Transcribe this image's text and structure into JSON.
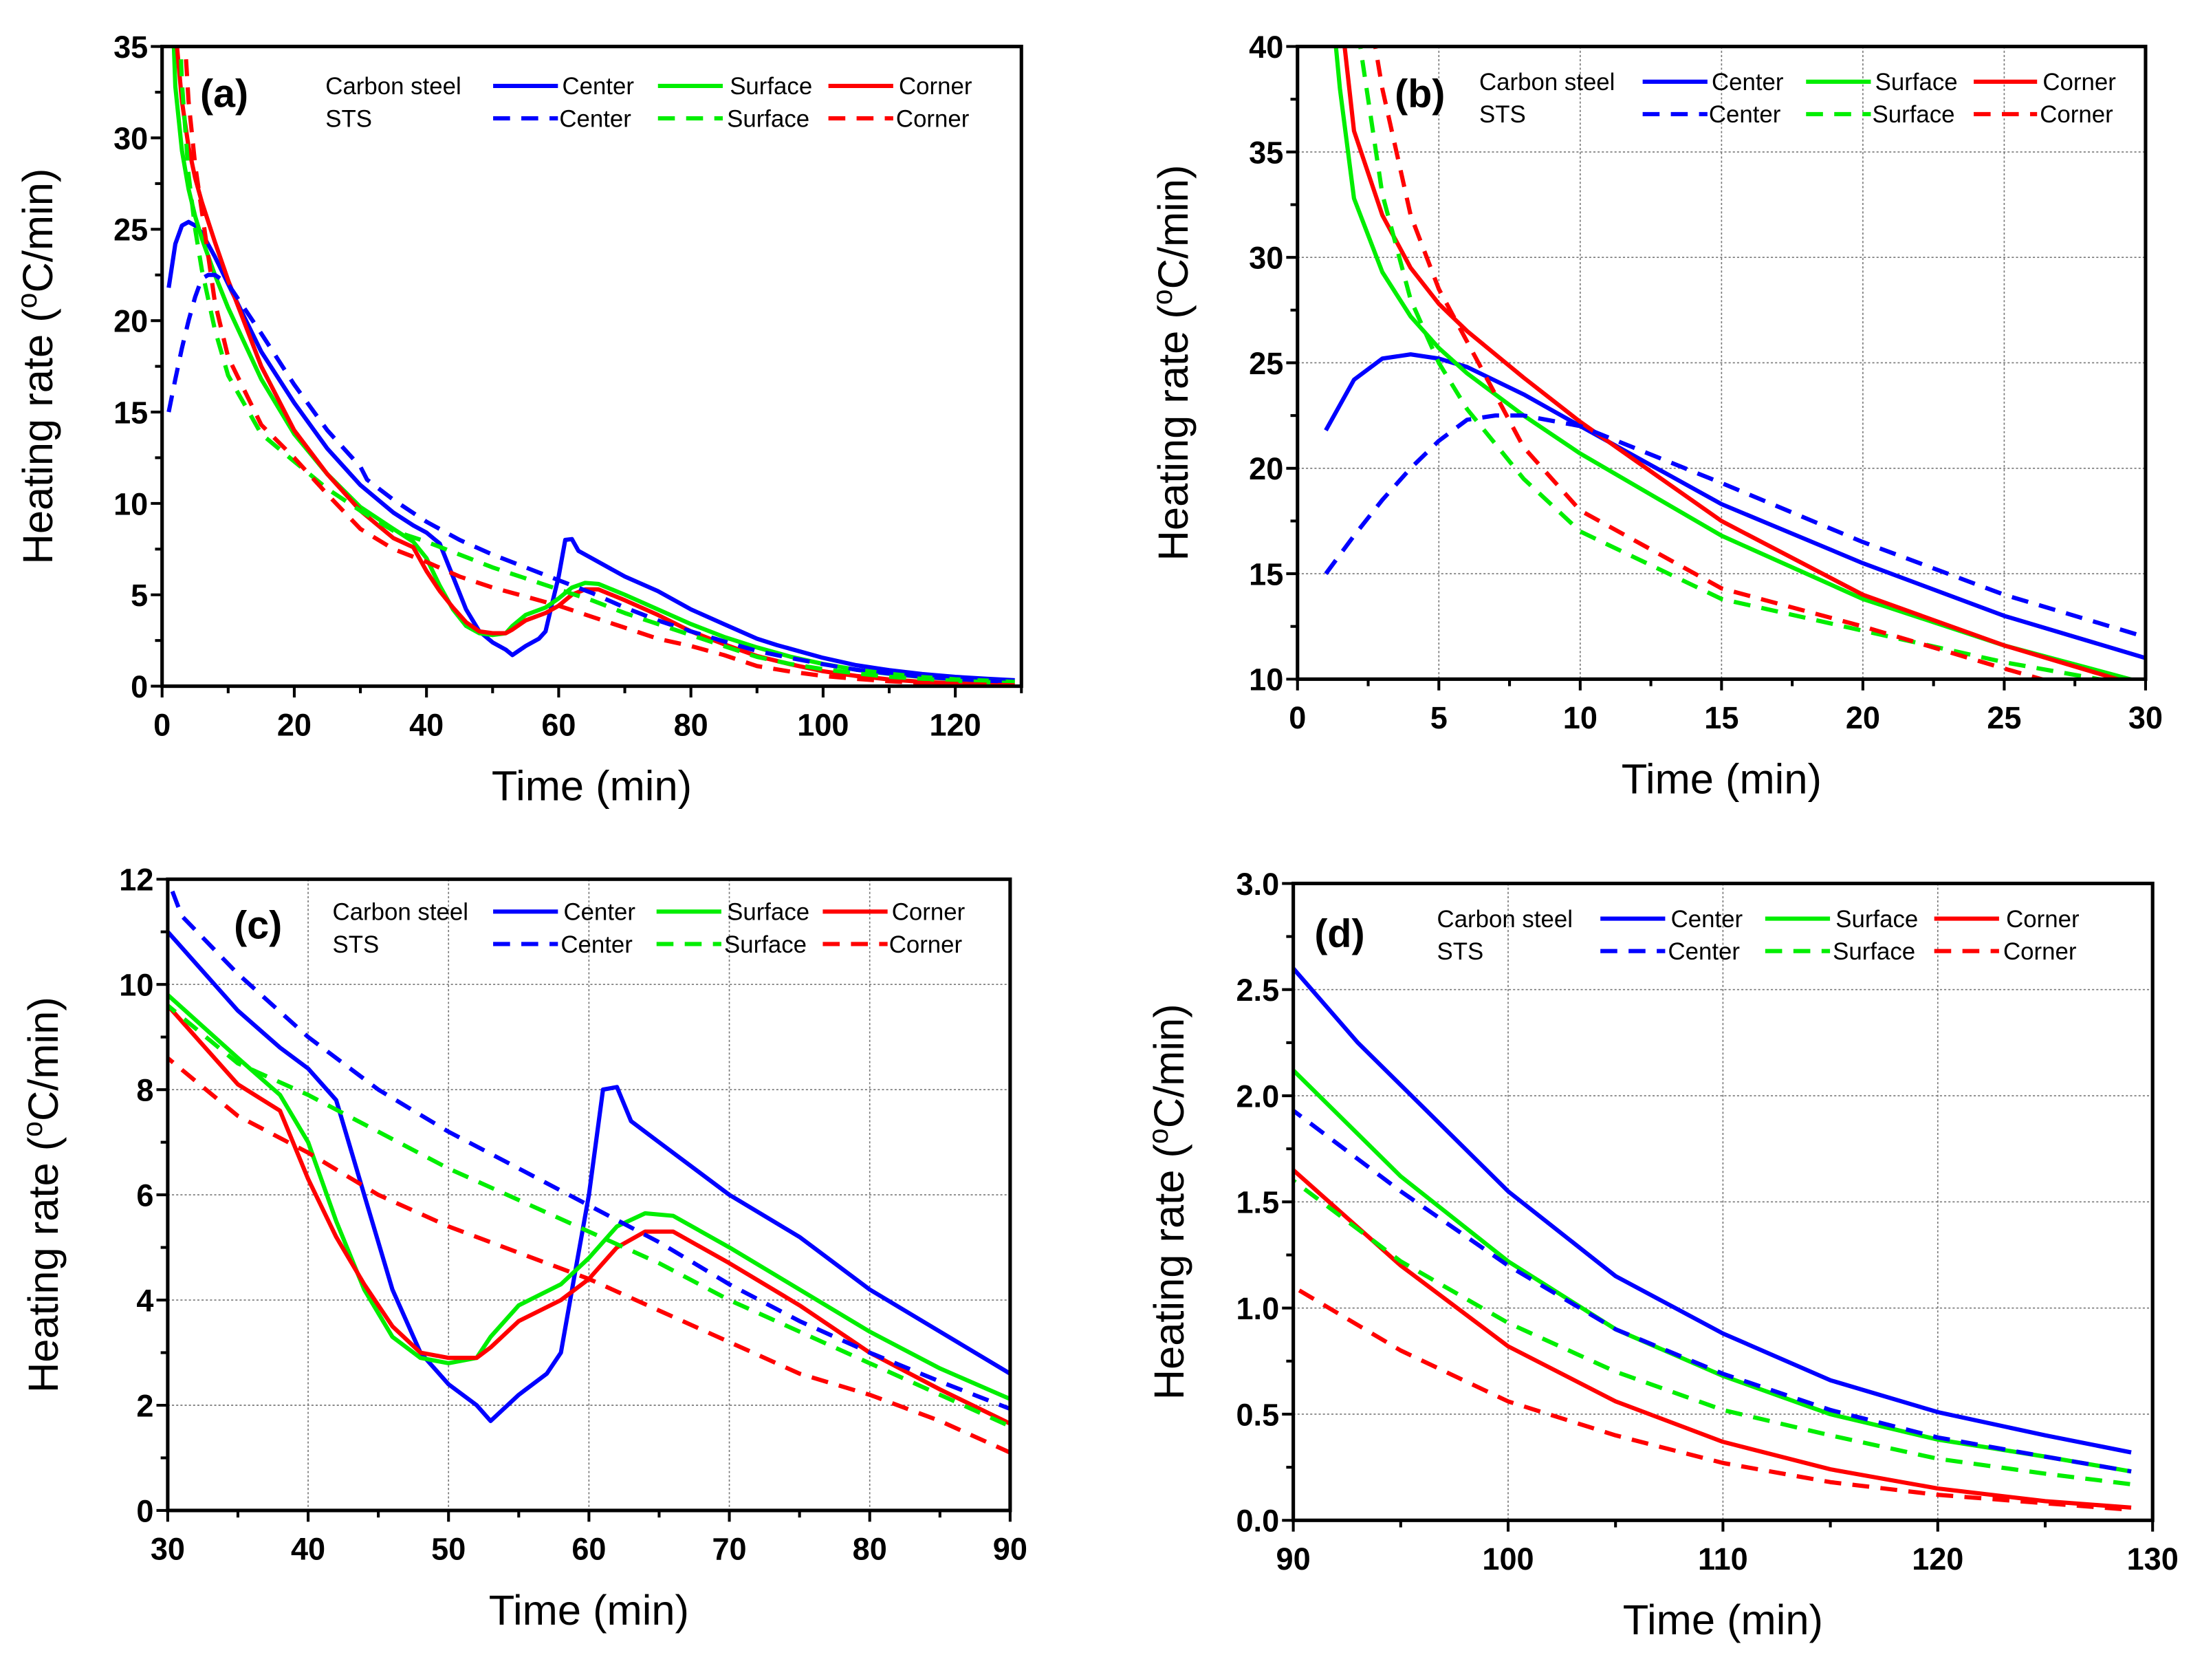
{
  "chart_data": {
    "type": "line",
    "xlabel": "Time (min)",
    "ylabel_prefix": "Heating rate (",
    "ylabel_sup": "o",
    "ylabel_suffix": "C/min)",
    "legend": {
      "group_labels": [
        "Carbon steel",
        "STS"
      ],
      "placement": "top-right"
    },
    "colors": {
      "center": "#0000ff",
      "surface": "#00ee00",
      "corner": "#ff0000"
    },
    "series": [
      {
        "name": "Center",
        "group": "Carbon steel",
        "style": "solid",
        "color": "#0000ff",
        "points": [
          [
            1,
            21.8
          ],
          [
            2,
            24.2
          ],
          [
            3,
            25.2
          ],
          [
            4,
            25.4
          ],
          [
            5,
            25.2
          ],
          [
            6,
            24.8
          ],
          [
            8,
            23.5
          ],
          [
            10,
            22
          ],
          [
            15,
            18.3
          ],
          [
            20,
            15.5
          ],
          [
            25,
            13
          ],
          [
            30,
            11
          ],
          [
            35,
            9.5
          ],
          [
            38,
            8.8
          ],
          [
            40,
            8.4
          ],
          [
            42,
            7.8
          ],
          [
            44,
            6
          ],
          [
            46,
            4.2
          ],
          [
            48,
            3
          ],
          [
            50,
            2.4
          ],
          [
            52,
            2
          ],
          [
            53,
            1.7
          ],
          [
            55,
            2.2
          ],
          [
            57,
            2.6
          ],
          [
            58,
            3
          ],
          [
            59,
            4.5
          ],
          [
            60,
            6
          ],
          [
            61,
            8
          ],
          [
            62,
            8.05
          ],
          [
            63,
            7.4
          ],
          [
            65,
            7
          ],
          [
            70,
            6
          ],
          [
            75,
            5.2
          ],
          [
            80,
            4.2
          ],
          [
            85,
            3.4
          ],
          [
            90,
            2.6
          ],
          [
            93,
            2.25
          ],
          [
            95,
            2.05
          ],
          [
            100,
            1.55
          ],
          [
            105,
            1.15
          ],
          [
            110,
            0.88
          ],
          [
            115,
            0.66
          ],
          [
            120,
            0.51
          ],
          [
            125,
            0.4
          ],
          [
            129,
            0.32
          ]
        ]
      },
      {
        "name": "Surface",
        "group": "Carbon steel",
        "style": "solid",
        "color": "#00ee00",
        "points": [
          [
            1,
            45
          ],
          [
            1.5,
            38
          ],
          [
            2,
            32.8
          ],
          [
            3,
            29.3
          ],
          [
            4,
            27.2
          ],
          [
            5,
            25.7
          ],
          [
            6,
            24.5
          ],
          [
            8,
            22.5
          ],
          [
            10,
            20.7
          ],
          [
            15,
            16.8
          ],
          [
            20,
            13.8
          ],
          [
            25,
            11.6
          ],
          [
            30,
            9.8
          ],
          [
            35,
            8.6
          ],
          [
            38,
            7.9
          ],
          [
            40,
            7
          ],
          [
            42,
            5.5
          ],
          [
            44,
            4.2
          ],
          [
            46,
            3.3
          ],
          [
            48,
            2.9
          ],
          [
            50,
            2.8
          ],
          [
            52,
            2.9
          ],
          [
            53,
            3.3
          ],
          [
            55,
            3.9
          ],
          [
            58,
            4.3
          ],
          [
            60,
            4.8
          ],
          [
            62,
            5.4
          ],
          [
            64,
            5.65
          ],
          [
            66,
            5.6
          ],
          [
            70,
            5
          ],
          [
            75,
            4.2
          ],
          [
            80,
            3.4
          ],
          [
            85,
            2.7
          ],
          [
            90,
            2.12
          ],
          [
            95,
            1.62
          ],
          [
            100,
            1.22
          ],
          [
            105,
            0.9
          ],
          [
            110,
            0.68
          ],
          [
            115,
            0.5
          ],
          [
            120,
            0.38
          ],
          [
            125,
            0.3
          ],
          [
            129,
            0.23
          ]
        ]
      },
      {
        "name": "Corner",
        "group": "Carbon steel",
        "style": "solid",
        "color": "#ff0000",
        "points": [
          [
            1.5,
            42
          ],
          [
            2,
            36
          ],
          [
            3,
            32
          ],
          [
            4,
            29.5
          ],
          [
            5,
            27.8
          ],
          [
            6,
            26.5
          ],
          [
            8,
            24.3
          ],
          [
            10,
            22.2
          ],
          [
            15,
            17.5
          ],
          [
            20,
            14
          ],
          [
            25,
            11.6
          ],
          [
            30,
            9.6
          ],
          [
            35,
            8.1
          ],
          [
            38,
            7.6
          ],
          [
            40,
            6.3
          ],
          [
            42,
            5.2
          ],
          [
            44,
            4.3
          ],
          [
            46,
            3.5
          ],
          [
            48,
            3
          ],
          [
            50,
            2.9
          ],
          [
            52,
            2.9
          ],
          [
            53,
            3.1
          ],
          [
            55,
            3.6
          ],
          [
            58,
            4
          ],
          [
            60,
            4.4
          ],
          [
            62,
            5
          ],
          [
            64,
            5.3
          ],
          [
            66,
            5.3
          ],
          [
            70,
            4.7
          ],
          [
            75,
            3.9
          ],
          [
            80,
            3
          ],
          [
            85,
            2.3
          ],
          [
            90,
            1.65
          ],
          [
            95,
            1.2
          ],
          [
            100,
            0.82
          ],
          [
            105,
            0.56
          ],
          [
            110,
            0.37
          ],
          [
            115,
            0.24
          ],
          [
            120,
            0.15
          ],
          [
            125,
            0.09
          ],
          [
            129,
            0.06
          ]
        ]
      },
      {
        "name": "Center",
        "group": "STS",
        "style": "dashed",
        "color": "#0000ff",
        "points": [
          [
            1,
            15
          ],
          [
            2,
            16.8
          ],
          [
            3,
            18.5
          ],
          [
            4,
            20
          ],
          [
            5,
            21.3
          ],
          [
            6,
            22.3
          ],
          [
            7,
            22.5
          ],
          [
            8,
            22.5
          ],
          [
            10,
            22
          ],
          [
            15,
            19.3
          ],
          [
            20,
            16.5
          ],
          [
            25,
            14
          ],
          [
            30,
            12
          ],
          [
            31,
            11.3
          ],
          [
            35,
            10.2
          ],
          [
            40,
            9
          ],
          [
            45,
            8
          ],
          [
            50,
            7.2
          ],
          [
            55,
            6.5
          ],
          [
            60,
            5.8
          ],
          [
            65,
            5.1
          ],
          [
            70,
            4.3
          ],
          [
            75,
            3.6
          ],
          [
            80,
            3
          ],
          [
            85,
            2.45
          ],
          [
            90,
            1.93
          ],
          [
            95,
            1.55
          ],
          [
            100,
            1.2
          ],
          [
            105,
            0.9
          ],
          [
            110,
            0.69
          ],
          [
            115,
            0.52
          ],
          [
            120,
            0.39
          ],
          [
            125,
            0.3
          ],
          [
            129,
            0.23
          ]
        ]
      },
      {
        "name": "Surface",
        "group": "STS",
        "style": "dashed",
        "color": "#00ee00",
        "points": [
          [
            2,
            42
          ],
          [
            3,
            33
          ],
          [
            4,
            28
          ],
          [
            5,
            25
          ],
          [
            6,
            22.8
          ],
          [
            8,
            19.5
          ],
          [
            10,
            17
          ],
          [
            15,
            13.8
          ],
          [
            20,
            12.3
          ],
          [
            25,
            10.8
          ],
          [
            30,
            9.6
          ],
          [
            35,
            8.5
          ],
          [
            40,
            7.9
          ],
          [
            45,
            7.2
          ],
          [
            50,
            6.5
          ],
          [
            55,
            5.9
          ],
          [
            60,
            5.3
          ],
          [
            65,
            4.7
          ],
          [
            70,
            4
          ],
          [
            75,
            3.4
          ],
          [
            80,
            2.8
          ],
          [
            85,
            2.2
          ],
          [
            90,
            1.6
          ],
          [
            95,
            1.22
          ],
          [
            100,
            0.93
          ],
          [
            105,
            0.7
          ],
          [
            110,
            0.52
          ],
          [
            115,
            0.4
          ],
          [
            120,
            0.29
          ],
          [
            125,
            0.22
          ],
          [
            129,
            0.17
          ]
        ]
      },
      {
        "name": "Corner",
        "group": "STS",
        "style": "dashed",
        "color": "#ff0000",
        "points": [
          [
            2.5,
            42
          ],
          [
            3,
            38
          ],
          [
            4,
            32
          ],
          [
            5,
            28.5
          ],
          [
            6,
            26
          ],
          [
            8,
            21
          ],
          [
            10,
            18
          ],
          [
            15,
            14.3
          ],
          [
            20,
            12.5
          ],
          [
            25,
            10.5
          ],
          [
            30,
            8.6
          ],
          [
            35,
            7.5
          ],
          [
            40,
            6.8
          ],
          [
            45,
            6
          ],
          [
            50,
            5.4
          ],
          [
            55,
            4.9
          ],
          [
            60,
            4.4
          ],
          [
            65,
            3.8
          ],
          [
            70,
            3.2
          ],
          [
            75,
            2.6
          ],
          [
            80,
            2.2
          ],
          [
            85,
            1.7
          ],
          [
            90,
            1.1
          ],
          [
            95,
            0.8
          ],
          [
            100,
            0.56
          ],
          [
            105,
            0.4
          ],
          [
            110,
            0.27
          ],
          [
            115,
            0.18
          ],
          [
            120,
            0.12
          ],
          [
            125,
            0.08
          ],
          [
            129,
            0.05
          ]
        ]
      }
    ],
    "panels": [
      {
        "label": "(a)",
        "xlim": [
          0,
          130
        ],
        "ylim": [
          0,
          35
        ],
        "xticks": [
          0,
          20,
          40,
          60,
          80,
          100,
          120
        ],
        "yticks": [
          0,
          5,
          10,
          15,
          20,
          25,
          30,
          35
        ],
        "xminor": 10,
        "yminor": 2.5,
        "grid": false,
        "ydecimals": 0
      },
      {
        "label": "(b)",
        "xlim": [
          0,
          30
        ],
        "ylim": [
          10,
          40
        ],
        "xticks": [
          0,
          5,
          10,
          15,
          20,
          25,
          30
        ],
        "yticks": [
          10,
          15,
          20,
          25,
          30,
          35,
          40
        ],
        "xminor": 2.5,
        "yminor": 2.5,
        "grid": true,
        "ydecimals": 0
      },
      {
        "label": "(c)",
        "xlim": [
          30,
          90
        ],
        "ylim": [
          0,
          12
        ],
        "xticks": [
          30,
          40,
          50,
          60,
          70,
          80,
          90
        ],
        "yticks": [
          0,
          2,
          4,
          6,
          8,
          10,
          12
        ],
        "xminor": 5,
        "yminor": 1,
        "grid": true,
        "ydecimals": 0
      },
      {
        "label": "(d)",
        "xlim": [
          90,
          130
        ],
        "ylim": [
          0,
          3
        ],
        "xticks": [
          90,
          100,
          110,
          120,
          130
        ],
        "yticks": [
          0,
          0.5,
          1,
          1.5,
          2,
          2.5,
          3
        ],
        "xminor": 5,
        "yminor": 0.25,
        "grid": true,
        "ydecimals": 1
      }
    ]
  }
}
